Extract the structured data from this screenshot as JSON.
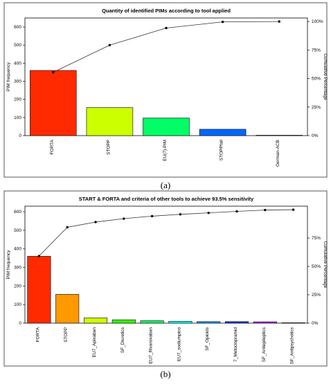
{
  "panels": [
    {
      "caption": "(a)",
      "chart_data": {
        "type": "bar",
        "title": "Quantity of identified PIMs according to tool applied",
        "ylabel": "PIM frequency",
        "y2label": "Cumulative Percentage",
        "categories": [
          "FORTA",
          "STOPP",
          "EU(7)-PIM",
          "STOPPfall",
          "German-ACB"
        ],
        "values": [
          360,
          155,
          97,
          35,
          2
        ],
        "colors": [
          "#ff2a00",
          "#ccff00",
          "#00ff66",
          "#0066ff",
          "#cc00ff"
        ],
        "cumulative_percent": [
          55.5,
          79.3,
          94.3,
          99.7,
          100
        ],
        "ylim": [
          0,
          650
        ],
        "yticks": [
          0,
          100,
          200,
          300,
          400,
          500,
          600
        ],
        "y2ticks": [
          "0%",
          "25%",
          "50%",
          "75%",
          "100%"
        ],
        "grid": false
      }
    },
    {
      "caption": "(b)",
      "chart_data": {
        "type": "bar",
        "title": "START & FORTA and criteria of other tools to achieve 93.5% sensitivity",
        "ylabel": "PIM frequency",
        "y2label": "Cumulative Percentage",
        "categories": [
          "FORTA",
          "STOPP",
          "EU7_Apixaban",
          "SF_Diuretics",
          "EU7_Rivaroxaban",
          "EU7_sodiumpico",
          "SF_Opioids",
          "7_Metoclopramid",
          "SF_Antiepileptics",
          "SF_Antipsychotics"
        ],
        "values": [
          360,
          155,
          28,
          18,
          13,
          10,
          8,
          8,
          7,
          2
        ],
        "colors": [
          "#ff2a00",
          "#ff9900",
          "#ccff00",
          "#33ff00",
          "#00ff66",
          "#00ffff",
          "#0099ff",
          "#0033ff",
          "#cc00ff",
          "#ff00cc"
        ],
        "cumulative_percent": [
          59.1,
          84.5,
          89.1,
          92.1,
          94.3,
          95.9,
          97.2,
          98.5,
          99.7,
          100
        ],
        "ylim": [
          0,
          630
        ],
        "yticks": [
          0,
          100,
          200,
          300,
          400,
          500,
          600
        ],
        "y2ticks": [
          "0%",
          "25%",
          "50%",
          "75%"
        ],
        "grid": false
      }
    }
  ]
}
